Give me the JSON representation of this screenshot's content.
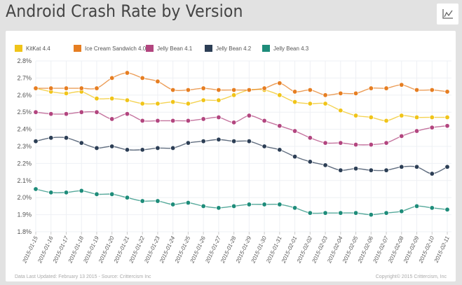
{
  "header": {
    "title": "Android Crash Rate by Version",
    "chart_type_icon": "line-chart-icon"
  },
  "footer": {
    "updated": "Data Last Updated: February 13 2015 - Source: Crittercism Inc",
    "copyright": "Copyright© 2015 Crittercism, Inc"
  },
  "chart_data": {
    "type": "line",
    "title": "Android Crash Rate by Version",
    "xlabel": "",
    "ylabel": "",
    "ylim": [
      1.8,
      2.8
    ],
    "yticks": [
      1.8,
      1.9,
      2.0,
      2.1,
      2.2,
      2.3,
      2.4,
      2.5,
      2.6,
      2.7,
      2.8
    ],
    "ytick_labels": [
      "1.8%",
      "1.9%",
      "2.0%",
      "2.1%",
      "2.2%",
      "2.3%",
      "2.4%",
      "2.5%",
      "2.6%",
      "2.7%",
      "2.8%"
    ],
    "grid": true,
    "legend_position": "top",
    "x": [
      "2015-01-15",
      "2015-01-16",
      "2015-01-17",
      "2015-01-18",
      "2015-01-19",
      "2015-01-20",
      "2015-01-21",
      "2015-01-22",
      "2015-01-23",
      "2015-01-24",
      "2015-01-25",
      "2015-01-26",
      "2015-01-27",
      "2015-01-28",
      "2015-01-29",
      "2015-01-30",
      "2015-01-31",
      "2015-02-01",
      "2015-02-02",
      "2015-02-03",
      "2015-02-04",
      "2015-02-05",
      "2015-02-06",
      "2015-02-07",
      "2015-02-08",
      "2015-02-09",
      "2015-02-10",
      "2015-02-11"
    ],
    "series": [
      {
        "name": "KitKat 4.4",
        "color": "#f0c419",
        "values": [
          2.64,
          2.62,
          2.61,
          2.62,
          2.58,
          2.58,
          2.57,
          2.55,
          2.55,
          2.56,
          2.55,
          2.57,
          2.57,
          2.6,
          2.63,
          2.63,
          2.6,
          2.56,
          2.55,
          2.55,
          2.51,
          2.48,
          2.47,
          2.45,
          2.48,
          2.47,
          2.47,
          2.47
        ]
      },
      {
        "name": "Ice Cream Sandwich 4.0",
        "color": "#e67e22",
        "values": [
          2.64,
          2.64,
          2.64,
          2.64,
          2.64,
          2.7,
          2.73,
          2.7,
          2.68,
          2.63,
          2.63,
          2.64,
          2.63,
          2.63,
          2.63,
          2.64,
          2.67,
          2.62,
          2.63,
          2.6,
          2.61,
          2.61,
          2.64,
          2.64,
          2.66,
          2.63,
          2.63,
          2.62
        ]
      },
      {
        "name": "Jelly Bean 4.1",
        "color": "#b2457f",
        "values": [
          2.5,
          2.49,
          2.49,
          2.5,
          2.5,
          2.46,
          2.49,
          2.45,
          2.45,
          2.45,
          2.45,
          2.46,
          2.47,
          2.44,
          2.48,
          2.45,
          2.42,
          2.39,
          2.35,
          2.32,
          2.32,
          2.31,
          2.31,
          2.32,
          2.36,
          2.39,
          2.41,
          2.42
        ]
      },
      {
        "name": "Jelly Bean 4.2",
        "color": "#2c3e55",
        "values": [
          2.33,
          2.35,
          2.35,
          2.32,
          2.29,
          2.3,
          2.28,
          2.28,
          2.29,
          2.29,
          2.32,
          2.33,
          2.34,
          2.33,
          2.33,
          2.3,
          2.28,
          2.24,
          2.21,
          2.19,
          2.16,
          2.17,
          2.16,
          2.16,
          2.18,
          2.18,
          2.14,
          2.18
        ]
      },
      {
        "name": "Jelly Bean 4.3",
        "color": "#1e8c7a",
        "values": [
          2.05,
          2.03,
          2.03,
          2.04,
          2.02,
          2.02,
          2.0,
          1.98,
          1.98,
          1.96,
          1.97,
          1.95,
          1.94,
          1.95,
          1.96,
          1.96,
          1.96,
          1.94,
          1.91,
          1.91,
          1.91,
          1.91,
          1.9,
          1.91,
          1.92,
          1.95,
          1.94,
          1.93
        ]
      }
    ]
  }
}
